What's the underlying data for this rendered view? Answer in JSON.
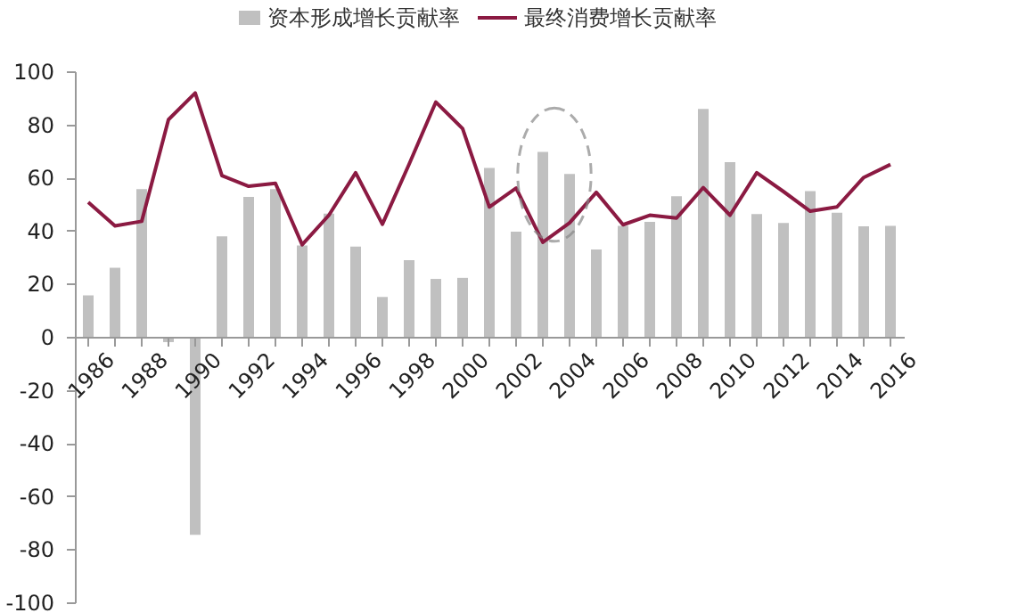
{
  "chart_data": {
    "type": "bar",
    "categories": [
      "1986",
      null,
      "1988",
      null,
      "1990",
      null,
      "1992",
      null,
      "1994",
      null,
      "1996",
      null,
      "1998",
      null,
      "2000",
      null,
      "2002",
      null,
      "2004",
      null,
      "2006",
      null,
      "2008",
      null,
      "2010",
      null,
      "2012",
      null,
      "2014",
      null,
      "2016"
    ],
    "series": [
      {
        "name": "资本形成增长贡献率",
        "type": "bar",
        "color": "#c0c0c0",
        "values": [
          15.6,
          26,
          55.6,
          -2,
          -74.6,
          37.8,
          52.7,
          55.6,
          34.4,
          46.4,
          34,
          15,
          28.9,
          21.8,
          22.2,
          63.6,
          39.6,
          69.6,
          61.3,
          32.9,
          41.8,
          43.3,
          52.9,
          85.8,
          65.8,
          46.2,
          42.9,
          54.9,
          46.7,
          41.6,
          41.8
        ]
      },
      {
        "name": "最终消费增长贡献率",
        "type": "line",
        "color": "#8b1a42",
        "values": [
          50.7,
          41.8,
          43.5,
          81.8,
          91.8,
          60.7,
          56.7,
          57.8,
          34.7,
          45.8,
          61.8,
          42.4,
          65,
          88.4,
          78.4,
          48.9,
          56,
          35.6,
          42.9,
          54.4,
          42.2,
          45.8,
          44.7,
          56.2,
          45.8,
          61.8,
          54.7,
          47.3,
          48.9,
          60,
          64.9
        ]
      }
    ],
    "ylim": [
      -100,
      100
    ],
    "yticks": [
      -100,
      -80,
      -60,
      -40,
      -20,
      0,
      20,
      40,
      60,
      80,
      100
    ],
    "grid": false,
    "legend": "top"
  }
}
